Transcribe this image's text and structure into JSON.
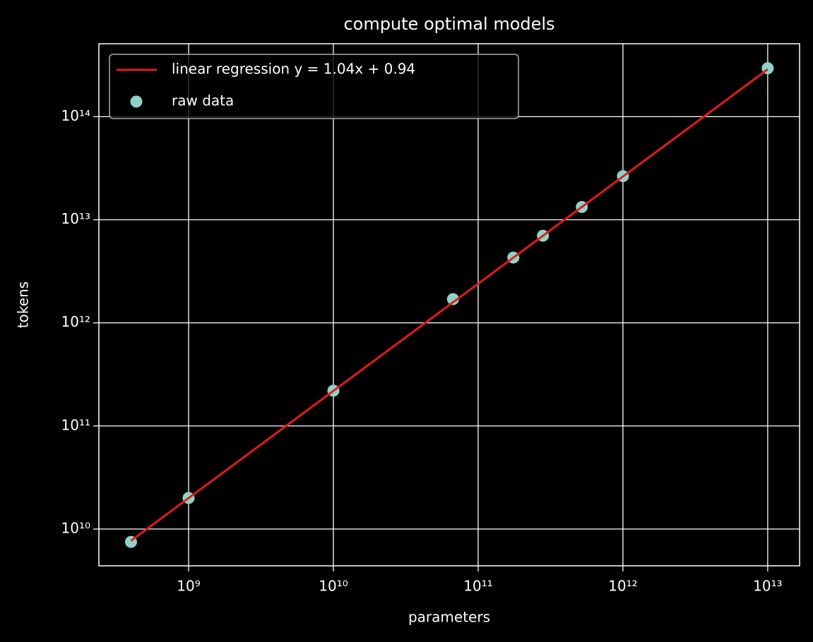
{
  "chart_data": {
    "type": "scatter",
    "title": "compute optimal models",
    "xlabel": "parameters",
    "ylabel": "tokens",
    "xscale": "log",
    "yscale": "log",
    "xlim": [
      240000000.0,
      16600000000000.0
    ],
    "ylim": [
      4400000000.0,
      510000000000000.0
    ],
    "xticks": [
      {
        "value": 1000000000.0,
        "label": "10⁹"
      },
      {
        "value": 10000000000.0,
        "label": "10¹⁰"
      },
      {
        "value": 100000000000.0,
        "label": "10¹¹"
      },
      {
        "value": 1000000000000.0,
        "label": "10¹²"
      },
      {
        "value": 10000000000000.0,
        "label": "10¹³"
      }
    ],
    "yticks": [
      {
        "value": 10000000000.0,
        "label": "10¹⁰"
      },
      {
        "value": 100000000000.0,
        "label": "10¹¹"
      },
      {
        "value": 1000000000000.0,
        "label": "10¹²"
      },
      {
        "value": 10000000000000.0,
        "label": "10¹³"
      },
      {
        "value": 100000000000000.0,
        "label": "10¹⁴"
      }
    ],
    "grid": true,
    "legend": "upper left",
    "series": [
      {
        "name": "linear regression y = 1.04x + 0.94",
        "type": "line",
        "color": "#e41a1c",
        "x": [
          400000000.0,
          10000000000000.0
        ],
        "values": [
          7700000000.0,
          288000000000000.0
        ]
      },
      {
        "name": "raw data",
        "type": "scatter",
        "color": "#8dd3c7",
        "x": [
          400000000.0,
          1000000000.0,
          10000000000.0,
          67000000000.0,
          175000000000.0,
          280000000000.0,
          520000000000.0,
          1000000000000.0,
          10000000000000.0
        ],
        "values": [
          7500000000.0,
          20000000000.0,
          220000000000.0,
          1700000000000.0,
          4300000000000.0,
          7000000000000.0,
          13300000000000.0,
          26500000000000.0,
          295000000000000.0
        ]
      }
    ]
  }
}
